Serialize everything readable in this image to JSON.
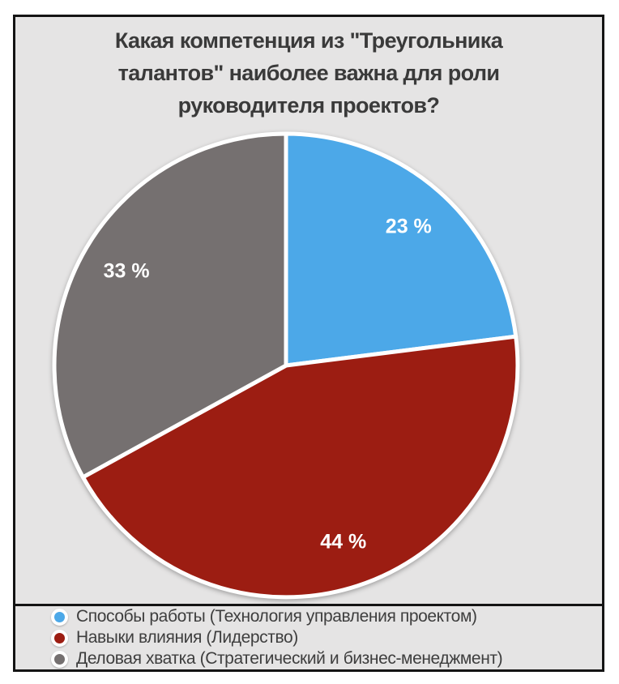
{
  "figure": {
    "page_background": "#FFFFFF",
    "plot_background": "#E5E4E4",
    "frame_color": "#141414",
    "title_color": "#3A3A3A",
    "value_label_color": "#FFFFFF",
    "legend_text_color": "#3E3E3E"
  },
  "chart_data": {
    "type": "pie",
    "title": "Какая компетенция из \"Треугольника талантов\" наиболее важна для роли руководителя проектов?",
    "title_lines": [
      "Какая компетенция из \"Треугольника",
      "талантов\" наиболее важна для роли",
      "руководителя проектов?"
    ],
    "unit": "%",
    "start_angle": "12-oclock",
    "direction": "clockwise",
    "legend_position": "bottom-left",
    "grid": "off",
    "slices": [
      {
        "label": "Способы работы (Технология управления проектом)",
        "value": 23,
        "display": "23 %",
        "color": "#4CA8E8"
      },
      {
        "label": "Навыки влияния (Лидерство)",
        "value": 44,
        "display": "44 %",
        "color": "#9C1D12"
      },
      {
        "label": "Деловая хватка (Стратегический и бизнес-менеджмент)",
        "value": 33,
        "display": "33 %",
        "color": "#757070"
      }
    ]
  }
}
